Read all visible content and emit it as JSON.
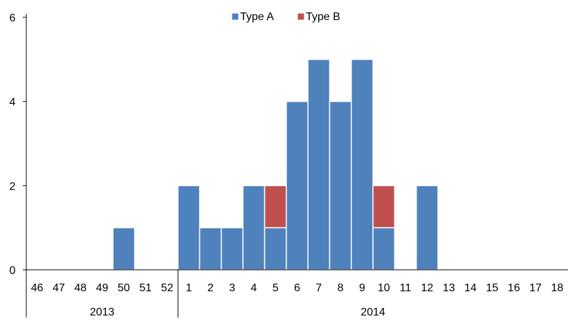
{
  "chart_data": {
    "type": "bar",
    "stacked": true,
    "categories": [
      "46",
      "47",
      "48",
      "49",
      "50",
      "51",
      "52",
      "1",
      "2",
      "3",
      "4",
      "5",
      "6",
      "7",
      "8",
      "9",
      "10",
      "11",
      "12",
      "13",
      "14",
      "15",
      "16",
      "17",
      "18"
    ],
    "groups": [
      {
        "label": "2013",
        "categories": [
          "46",
          "47",
          "48",
          "49",
          "50",
          "51",
          "52"
        ]
      },
      {
        "label": "2014",
        "categories": [
          "1",
          "2",
          "3",
          "4",
          "5",
          "6",
          "7",
          "8",
          "9",
          "10",
          "11",
          "12",
          "13",
          "14",
          "15",
          "16",
          "17",
          "18"
        ]
      }
    ],
    "series": [
      {
        "name": "Type A",
        "color": "#4f81bd",
        "values": [
          0,
          0,
          0,
          0,
          1,
          0,
          0,
          2,
          1,
          1,
          2,
          1,
          4,
          5,
          4,
          5,
          1,
          0,
          2,
          0,
          0,
          0,
          0,
          0,
          0
        ]
      },
      {
        "name": "Type B",
        "color": "#c0504d",
        "values": [
          0,
          0,
          0,
          0,
          0,
          0,
          0,
          0,
          0,
          0,
          0,
          1,
          0,
          0,
          0,
          0,
          1,
          0,
          0,
          0,
          0,
          0,
          0,
          0,
          0
        ]
      }
    ],
    "y_ticks": [
      "0",
      "2",
      "4",
      "6"
    ],
    "ylim": [
      0,
      6
    ],
    "grid": false,
    "legend_position": "top-center"
  }
}
